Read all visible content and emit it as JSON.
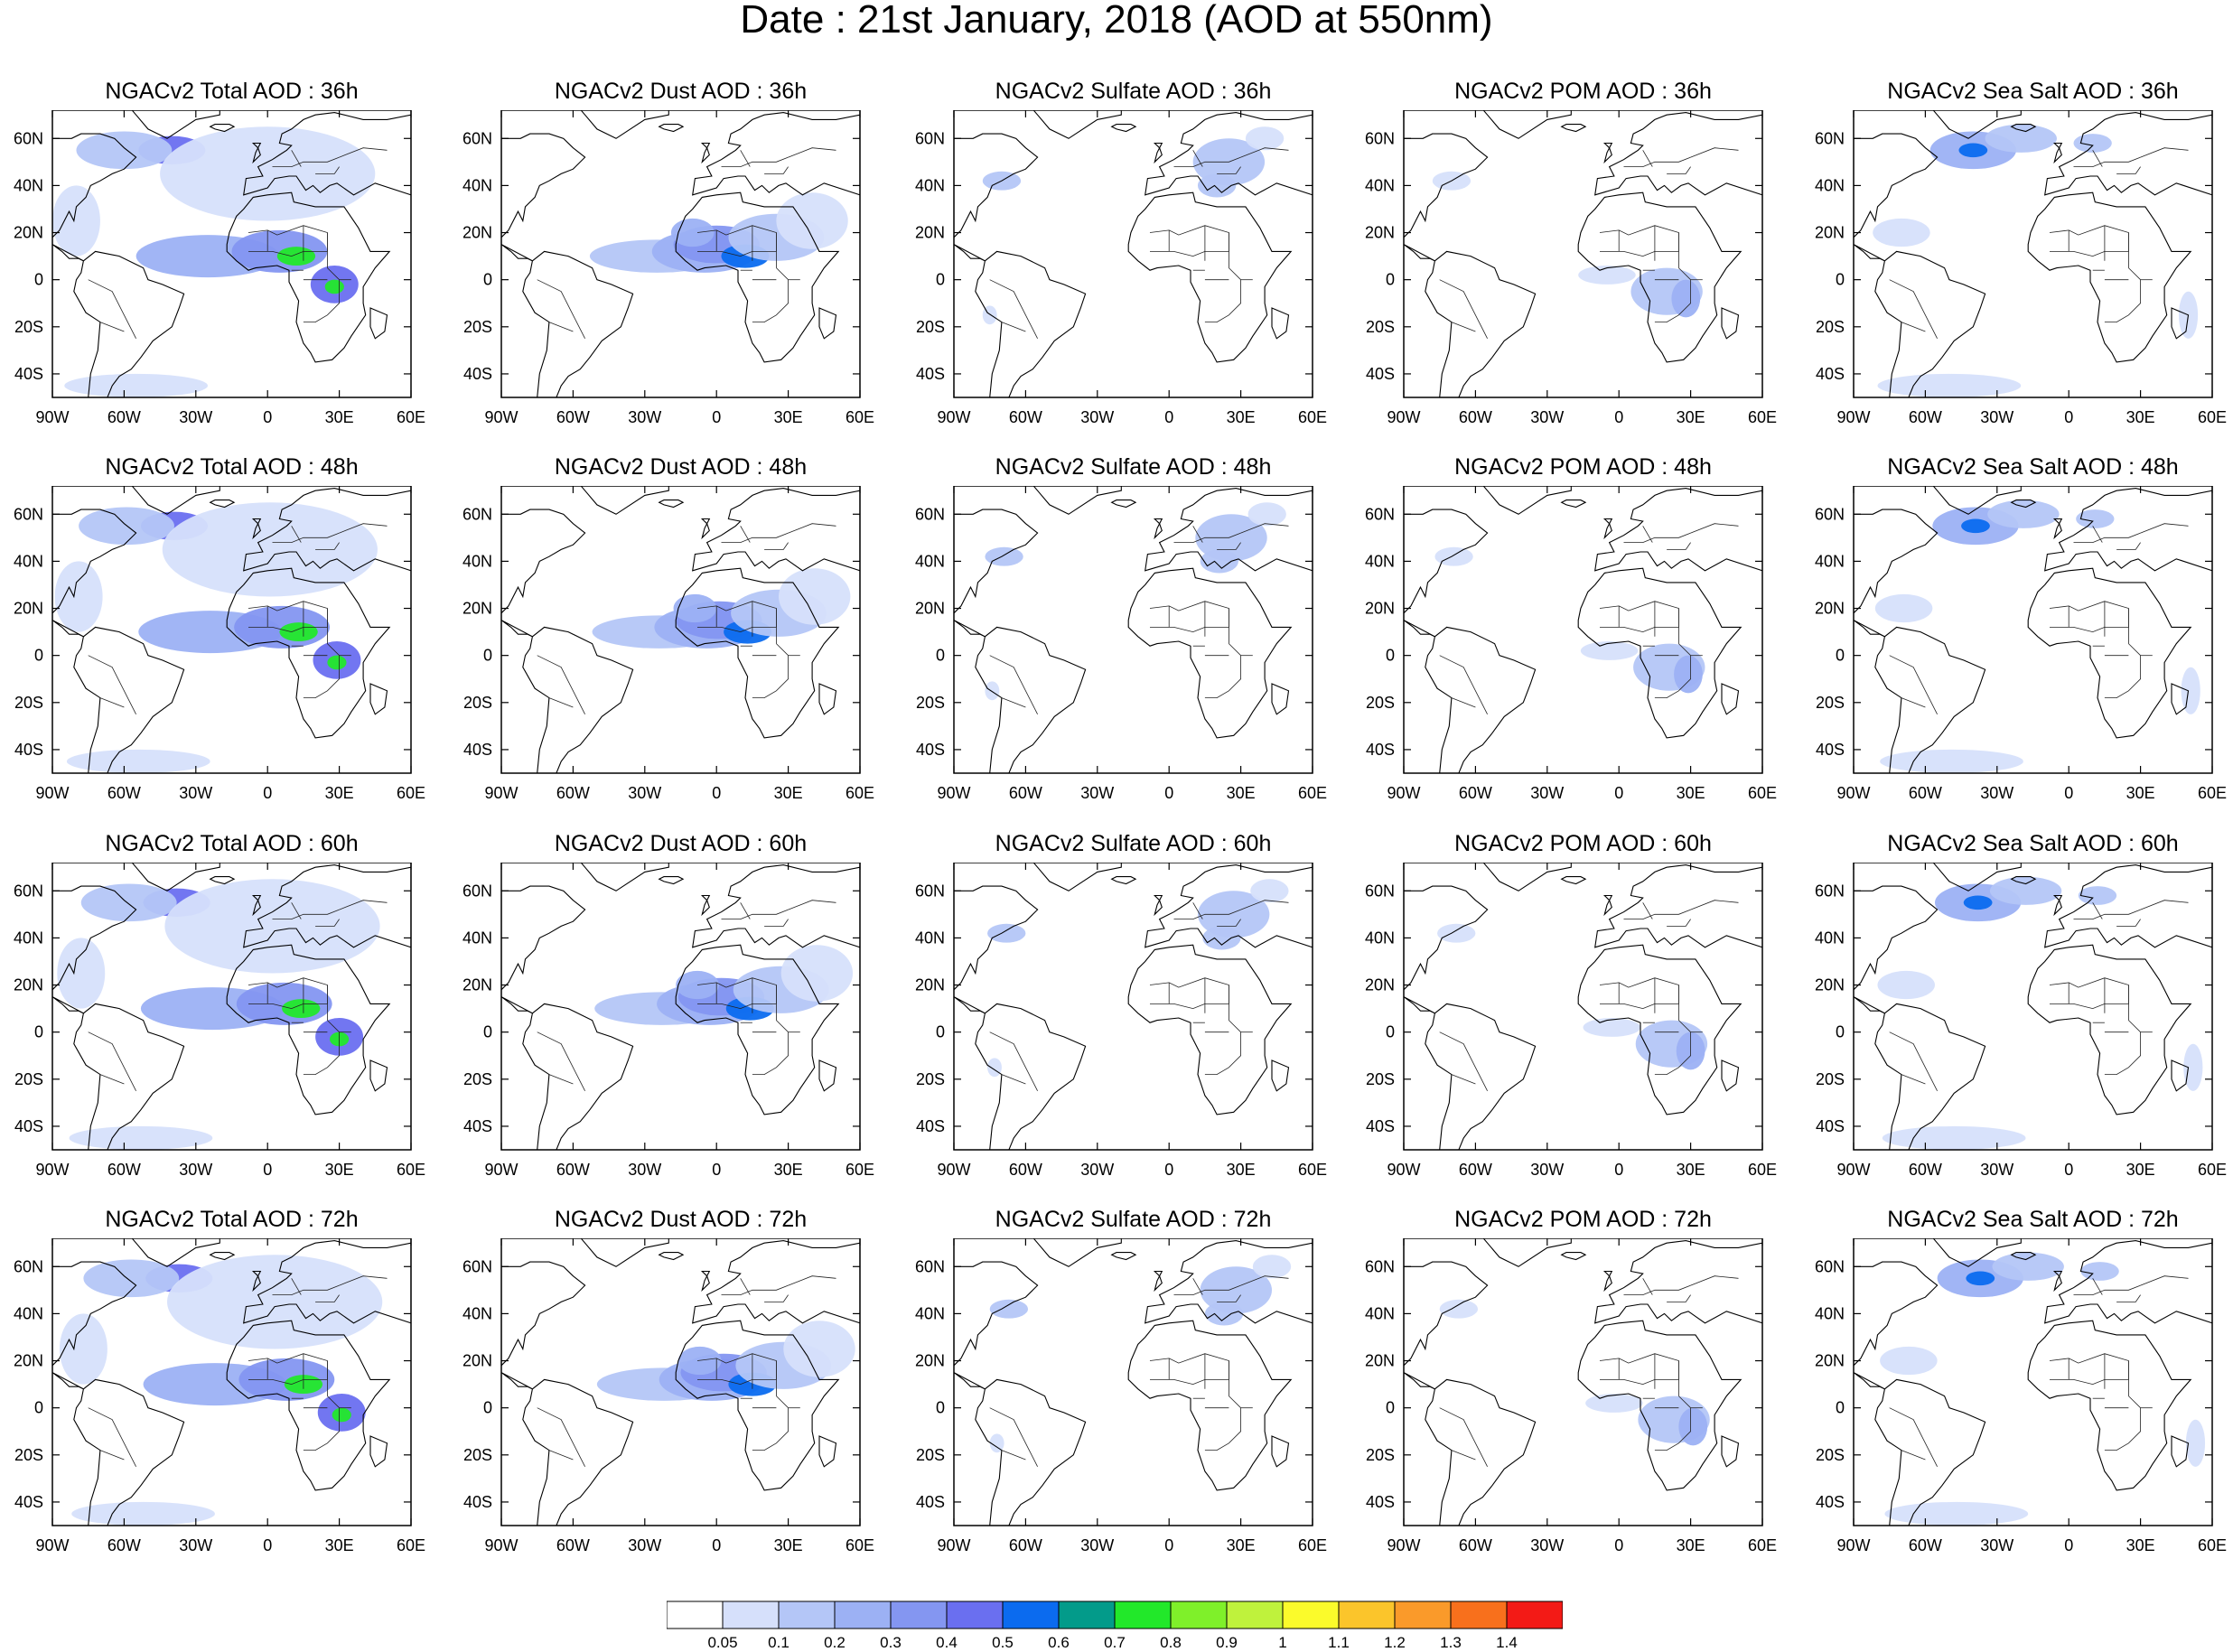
{
  "title": "Date : 21st January, 2018 (AOD at 550nm)",
  "lon_ticks": [
    "90W",
    "60W",
    "30W",
    "0",
    "30E",
    "60E"
  ],
  "lat_ticks": [
    "60N",
    "40N",
    "20N",
    "0",
    "20S",
    "40S"
  ],
  "panels": [
    {
      "title": "NGACv2 Total AOD : 36h",
      "species": "total",
      "hour": 36
    },
    {
      "title": "NGACv2 Dust AOD : 36h",
      "species": "dust",
      "hour": 36
    },
    {
      "title": "NGACv2 Sulfate AOD : 36h",
      "species": "sulfate",
      "hour": 36
    },
    {
      "title": "NGACv2 POM AOD : 36h",
      "species": "pom",
      "hour": 36
    },
    {
      "title": "NGACv2 Sea Salt AOD : 36h",
      "species": "seasalt",
      "hour": 36
    },
    {
      "title": "NGACv2 Total AOD : 48h",
      "species": "total",
      "hour": 48
    },
    {
      "title": "NGACv2 Dust AOD : 48h",
      "species": "dust",
      "hour": 48
    },
    {
      "title": "NGACv2 Sulfate AOD : 48h",
      "species": "sulfate",
      "hour": 48
    },
    {
      "title": "NGACv2 POM AOD : 48h",
      "species": "pom",
      "hour": 48
    },
    {
      "title": "NGACv2 Sea Salt AOD : 48h",
      "species": "seasalt",
      "hour": 48
    },
    {
      "title": "NGACv2 Total AOD : 60h",
      "species": "total",
      "hour": 60
    },
    {
      "title": "NGACv2 Dust AOD : 60h",
      "species": "dust",
      "hour": 60
    },
    {
      "title": "NGACv2 Sulfate AOD : 60h",
      "species": "sulfate",
      "hour": 60
    },
    {
      "title": "NGACv2 POM AOD : 60h",
      "species": "pom",
      "hour": 60
    },
    {
      "title": "NGACv2 Sea Salt AOD : 60h",
      "species": "seasalt",
      "hour": 60
    },
    {
      "title": "NGACv2 Total AOD : 72h",
      "species": "total",
      "hour": 72
    },
    {
      "title": "NGACv2 Dust AOD : 72h",
      "species": "dust",
      "hour": 72
    },
    {
      "title": "NGACv2 Sulfate AOD : 72h",
      "species": "sulfate",
      "hour": 72
    },
    {
      "title": "NGACv2 POM AOD : 72h",
      "species": "pom",
      "hour": 72
    },
    {
      "title": "NGACv2 Sea Salt  AOD : 72h",
      "species": "seasalt",
      "hour": 72
    }
  ],
  "colorbar": {
    "labels": [
      "0.05",
      "0.1",
      "0.2",
      "0.3",
      "0.4",
      "0.5",
      "0.6",
      "0.7",
      "0.8",
      "0.9",
      "1",
      "1.1",
      "1.2",
      "1.3",
      "1.4"
    ],
    "colors": [
      "#ffffff",
      "#d6e0fb",
      "#b4c6f7",
      "#9cb1f4",
      "#8496f1",
      "#6a6ff0",
      "#0b6bef",
      "#039b8a",
      "#22e82a",
      "#7ff02a",
      "#bff23c",
      "#fbfb2b",
      "#fbc52b",
      "#fa9a2a",
      "#f8701c",
      "#f31a16"
    ]
  }
}
